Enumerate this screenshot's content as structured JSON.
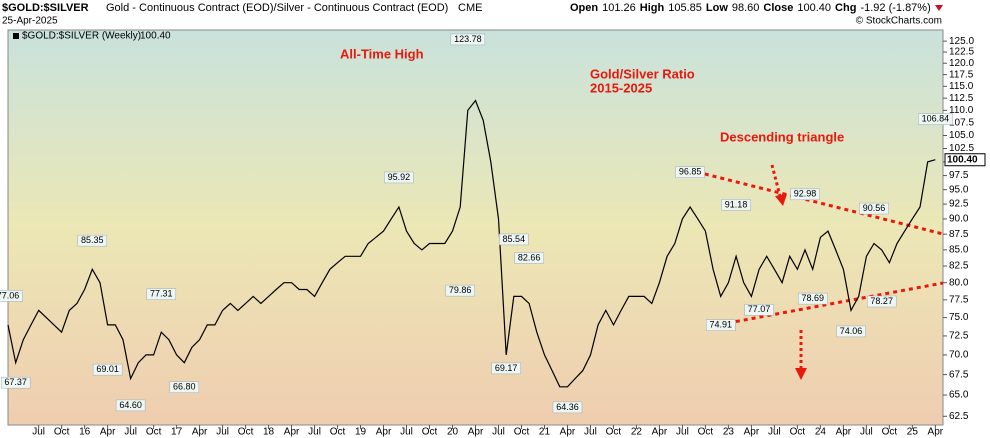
{
  "chart_data": {
    "type": "line",
    "title": "$GOLD:$SILVER",
    "subtitle": "Gold - Continuous Contract (EOD)/Silver - Continuous Contract (EOD)",
    "exchange": "CME",
    "date": "25-Apr-2025",
    "quote": [
      "Open",
      "101.26",
      "High",
      "105.85",
      "Low",
      "98.60",
      "Close",
      "100.40",
      "Chg",
      "-1.92 (-1.87%)"
    ],
    "copyright": "© StockCharts.com",
    "annotations": [
      "All-Time High",
      "Gold/Silver Ratio",
      "2015-2025",
      "Descending triangle"
    ],
    "log_scale": true,
    "xlim": [
      "2015-03",
      "2025-05"
    ],
    "ylim": [
      61.5,
      127.6
    ],
    "xticks": [
      {
        "value": "2015-07",
        "label": "Jul"
      },
      {
        "value": "2015-10",
        "label": "Oct"
      },
      {
        "value": "2016-01",
        "label": "16"
      },
      {
        "value": "2016-04",
        "label": "Apr"
      },
      {
        "value": "2016-07",
        "label": "Jul"
      },
      {
        "value": "2016-10",
        "label": "Oct"
      },
      {
        "value": "2017-01",
        "label": "17"
      },
      {
        "value": "2017-04",
        "label": "Apr"
      },
      {
        "value": "2017-07",
        "label": "Jul"
      },
      {
        "value": "2017-10",
        "label": "Oct"
      },
      {
        "value": "2018-01",
        "label": "18"
      },
      {
        "value": "2018-04",
        "label": "Apr"
      },
      {
        "value": "2018-07",
        "label": "Jul"
      },
      {
        "value": "2018-10",
        "label": "Oct"
      },
      {
        "value": "2019-01",
        "label": "19"
      },
      {
        "value": "2019-04",
        "label": "Apr"
      },
      {
        "value": "2019-07",
        "label": "Jul"
      },
      {
        "value": "2019-10",
        "label": "Oct"
      },
      {
        "value": "2020-01",
        "label": "20"
      },
      {
        "value": "2020-04",
        "label": "Apr"
      },
      {
        "value": "2020-07",
        "label": "Jul"
      },
      {
        "value": "2020-10",
        "label": "Oct"
      },
      {
        "value": "2021-01",
        "label": "21"
      },
      {
        "value": "2021-04",
        "label": "Apr"
      },
      {
        "value": "2021-07",
        "label": "Jul"
      },
      {
        "value": "2021-10",
        "label": "Oct"
      },
      {
        "value": "2022-01",
        "label": "22"
      },
      {
        "value": "2022-04",
        "label": "Apr"
      },
      {
        "value": "2022-07",
        "label": "Jul"
      },
      {
        "value": "2022-10",
        "label": "Oct"
      },
      {
        "value": "2023-01",
        "label": "23"
      },
      {
        "value": "2023-04",
        "label": "Apr"
      },
      {
        "value": "2023-07",
        "label": "Jul"
      },
      {
        "value": "2023-10",
        "label": "Oct"
      },
      {
        "value": "2024-01",
        "label": "24"
      },
      {
        "value": "2024-04",
        "label": "Apr"
      },
      {
        "value": "2024-07",
        "label": "Jul"
      },
      {
        "value": "2024-10",
        "label": "Oct"
      },
      {
        "value": "2025-01",
        "label": "25"
      },
      {
        "value": "2025-04",
        "label": "Apr"
      }
    ],
    "yticks": [
      62.5,
      {
        "value": 65,
        "label": "65.0"
      },
      67.5,
      {
        "value": 70,
        "label": "70.0"
      },
      72.5,
      {
        "value": 75,
        "label": "75.0"
      },
      77.5,
      {
        "value": 80,
        "label": "80.0"
      },
      82.5,
      {
        "value": 85,
        "label": "85.0"
      },
      87.5,
      {
        "value": 90,
        "label": "90.0"
      },
      92.5,
      {
        "value": 95,
        "label": "95.0"
      },
      97.5,
      {
        "value": 100,
        "label": "100.0"
      },
      102.5,
      {
        "value": 105,
        "label": "105.0"
      },
      107.5,
      {
        "value": 110,
        "label": "110.0"
      },
      112.5,
      {
        "value": 115,
        "label": "115.0"
      },
      117.5,
      {
        "value": 120,
        "label": "120.0"
      },
      122.5,
      {
        "value": 125,
        "label": "125.0"
      }
    ],
    "series": [
      {
        "name": "$GOLD:$SILVER (Weekly)",
        "color": "#000000",
        "last_label": {
          "value": 100.4,
          "label": "100.40"
        },
        "x": [
          "2015-03",
          "2015-04",
          "2015-05",
          "2015-06",
          "2015-07",
          "2015-08",
          "2015-09",
          "2015-10",
          "2015-11",
          "2015-12",
          "2016-01",
          "2016-02",
          "2016-03",
          "2016-04",
          "2016-05",
          "2016-06",
          "2016-07",
          "2016-08",
          "2016-09",
          "2016-10",
          "2016-11",
          "2016-12",
          "2017-01",
          "2017-02",
          "2017-03",
          "2017-04",
          "2017-05",
          "2017-06",
          "2017-07",
          "2017-08",
          "2017-09",
          "2017-10",
          "2017-11",
          "2017-12",
          "2018-01",
          "2018-02",
          "2018-03",
          "2018-04",
          "2018-05",
          "2018-06",
          "2018-07",
          "2018-08",
          "2018-09",
          "2018-10",
          "2018-11",
          "2018-12",
          "2019-01",
          "2019-02",
          "2019-03",
          "2019-04",
          "2019-05",
          "2019-06",
          "2019-07",
          "2019-08",
          "2019-09",
          "2019-10",
          "2019-11",
          "2019-12",
          "2020-01",
          "2020-02",
          "2020-03",
          "2020-04",
          "2020-05",
          "2020-06",
          "2020-07",
          "2020-08",
          "2020-09",
          "2020-10",
          "2020-11",
          "2020-12",
          "2021-01",
          "2021-02",
          "2021-03",
          "2021-04",
          "2021-05",
          "2021-06",
          "2021-07",
          "2021-08",
          "2021-09",
          "2021-10",
          "2021-11",
          "2021-12",
          "2022-01",
          "2022-02",
          "2022-03",
          "2022-04",
          "2022-05",
          "2022-06",
          "2022-07",
          "2022-08",
          "2022-09",
          "2022-10",
          "2022-11",
          "2022-12",
          "2023-01",
          "2023-02",
          "2023-03",
          "2023-04",
          "2023-05",
          "2023-06",
          "2023-07",
          "2023-08",
          "2023-09",
          "2023-10",
          "2023-11",
          "2023-12",
          "2024-01",
          "2024-02",
          "2024-03",
          "2024-04",
          "2024-05",
          "2024-06",
          "2024-07",
          "2024-08",
          "2024-09",
          "2024-10",
          "2024-11",
          "2024-12",
          "2025-01",
          "2025-02",
          "2025-03",
          "2025-04"
        ],
        "values": [
          74,
          69,
          72,
          74,
          76,
          75,
          74,
          73,
          76,
          77,
          79,
          82,
          80,
          74,
          74,
          72,
          67,
          69,
          70,
          70,
          73,
          72,
          70,
          69,
          71,
          72,
          74,
          74,
          76,
          77,
          76,
          77,
          78,
          77,
          78,
          79,
          80,
          80,
          79,
          79,
          78,
          80,
          82,
          83,
          84,
          84,
          84,
          86,
          87,
          88,
          90,
          92,
          88,
          86,
          85,
          86,
          86,
          86,
          88,
          92,
          110,
          112,
          108,
          100,
          90,
          70,
          78,
          78,
          77,
          73,
          70,
          68,
          66,
          66,
          67,
          68,
          70,
          74,
          76,
          74,
          76,
          78,
          78,
          78,
          77,
          80,
          84,
          86,
          90,
          92,
          90,
          88,
          82,
          78,
          80,
          84,
          80,
          78,
          82,
          84,
          82,
          80,
          84,
          82,
          85,
          82,
          87,
          88,
          85,
          82,
          76,
          78,
          84,
          86,
          85,
          83,
          86,
          88,
          90,
          92,
          100,
          100.4
        ]
      }
    ],
    "extremes": [
      {
        "x": "2015-03",
        "value": 77.06,
        "label": "77.06"
      },
      {
        "x": "2015-04",
        "value": 67.37,
        "label": "67.37"
      },
      {
        "x": "2016-02",
        "value": 85.35,
        "label": "85.35"
      },
      {
        "x": "2016-04",
        "value": 69.01,
        "label": "69.01"
      },
      {
        "x": "2016-07",
        "value": 64.6,
        "label": "64.60"
      },
      {
        "x": "2016-11",
        "value": 77.31,
        "label": "77.31"
      },
      {
        "x": "2017-02",
        "value": 66.8,
        "label": "66.80"
      },
      {
        "x": "2019-06",
        "value": 95.92,
        "label": "95.92"
      },
      {
        "x": "2020-02",
        "value": 79.86,
        "label": "79.86"
      },
      {
        "x": "2020-03",
        "value": 123.78,
        "label": "123.78"
      },
      {
        "x": "2020-08",
        "value": 69.17,
        "label": "69.17"
      },
      {
        "x": "2020-09",
        "value": 85.54,
        "label": "85.54"
      },
      {
        "x": "2020-11",
        "value": 82.66,
        "label": "82.66"
      },
      {
        "x": "2021-04",
        "value": 64.36,
        "label": "64.36"
      },
      {
        "x": "2022-08",
        "value": 96.85,
        "label": "96.85"
      },
      {
        "x": "2022-12",
        "value": 74.91,
        "label": "74.91"
      },
      {
        "x": "2023-02",
        "value": 91.18,
        "label": "91.18"
      },
      {
        "x": "2023-05",
        "value": 77.07,
        "label": "77.07"
      },
      {
        "x": "2023-11",
        "value": 92.98,
        "label": "92.98"
      },
      {
        "x": "2023-12",
        "value": 78.69,
        "label": "78.69"
      },
      {
        "x": "2024-05",
        "value": 74.06,
        "label": "74.06"
      },
      {
        "x": "2024-08",
        "value": 90.56,
        "label": "90.56"
      },
      {
        "x": "2024-09",
        "value": 78.27,
        "label": "78.27"
      },
      {
        "x": "2025-04",
        "value": 106.84,
        "label": "106.84"
      }
    ]
  }
}
